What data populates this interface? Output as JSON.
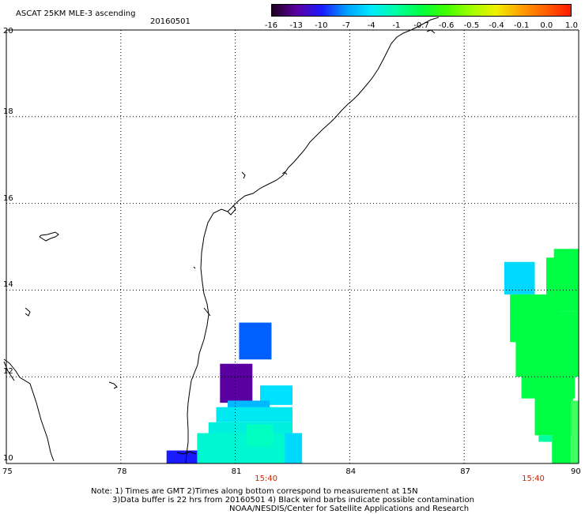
{
  "header": {
    "title": "ASCAT 25KM MLE-3 ascending",
    "date": "20160501"
  },
  "legend": {
    "colors": [
      "#200020",
      "#5a00a0",
      "#1a1aff",
      "#00a0ff",
      "#00eaff",
      "#00ffa0",
      "#00ff40",
      "#40ff00",
      "#a0ff00",
      "#f0f000",
      "#ffa000",
      "#ff6000",
      "#ff1a00"
    ],
    "ticks": [
      "-16",
      "-13",
      "-10",
      "-7",
      "-4",
      "-1",
      "-0.7",
      "-0.6",
      "-0.5",
      "-0.4",
      "-0.1",
      "0.0",
      "1.0"
    ]
  },
  "axes": {
    "lat_labels": [
      "20",
      "18",
      "16",
      "14",
      "12",
      "10"
    ],
    "lon_labels": [
      "75",
      "78",
      "81",
      "84",
      "87",
      "90"
    ]
  },
  "pass_times": [
    {
      "label": "15:40",
      "lon": 81.8
    },
    {
      "label": "15:40",
      "lon": 88.8
    }
  ],
  "notes": {
    "line1": "Note: 1) Times are GMT 2)Times along bottom correspond to measurement at 15N",
    "line2": "3)Data buffer is 22 hrs from 20160501 4) Black wind barbs indicate possible contamination",
    "line3": "NOAA/NESDIS/Center for Satellite Applications and Research"
  },
  "data_cells": [
    {
      "lon0": 79.2,
      "lat0": 10.0,
      "lon1": 80.05,
      "lat1": 10.3,
      "color": "#1a1aff"
    },
    {
      "lon0": 81.1,
      "lat0": 12.4,
      "lon1": 81.95,
      "lat1": 13.25,
      "color": "#0060ff"
    },
    {
      "lon0": 80.6,
      "lat0": 11.4,
      "lon1": 81.45,
      "lat1": 12.3,
      "color": "#5a00a0"
    },
    {
      "lon0": 81.65,
      "lat0": 11.35,
      "lon1": 82.5,
      "lat1": 11.8,
      "color": "#00e0ff"
    },
    {
      "lon0": 80.8,
      "lat0": 11.25,
      "lon1": 81.9,
      "lat1": 11.45,
      "color": "#00b8ff"
    },
    {
      "lon0": 80.5,
      "lat0": 10.95,
      "lon1": 82.5,
      "lat1": 11.3,
      "color": "#00e8f0"
    },
    {
      "lon0": 80.3,
      "lat0": 10.65,
      "lon1": 82.5,
      "lat1": 10.95,
      "color": "#00f0e0"
    },
    {
      "lon0": 80.0,
      "lat0": 10.0,
      "lon1": 82.75,
      "lat1": 10.7,
      "color": "#00f8d0"
    },
    {
      "lon0": 82.3,
      "lat0": 10.0,
      "lon1": 82.75,
      "lat1": 10.7,
      "color": "#00d8ff"
    },
    {
      "lon0": 81.3,
      "lat0": 10.4,
      "lon1": 82.0,
      "lat1": 10.9,
      "color": "#00ffc0"
    },
    {
      "lon0": 88.05,
      "lat0": 13.9,
      "lon1": 88.85,
      "lat1": 14.65,
      "color": "#00d8ff"
    },
    {
      "lon0": 89.35,
      "lat0": 13.5,
      "lon1": 90.0,
      "lat1": 14.95,
      "color": "#00ff44"
    },
    {
      "lon0": 89.15,
      "lat0": 13.2,
      "lon1": 89.5,
      "lat1": 14.75,
      "color": "#00ff44"
    },
    {
      "lon0": 88.2,
      "lat0": 12.8,
      "lon1": 89.2,
      "lat1": 13.9,
      "color": "#00ff44"
    },
    {
      "lon0": 88.35,
      "lat0": 12.0,
      "lon1": 90.0,
      "lat1": 13.5,
      "color": "#00ff44"
    },
    {
      "lon0": 88.5,
      "lat0": 11.5,
      "lon1": 89.9,
      "lat1": 12.1,
      "color": "#00ff44"
    },
    {
      "lon0": 88.85,
      "lat0": 10.65,
      "lon1": 89.85,
      "lat1": 11.6,
      "color": "#00ff44"
    },
    {
      "lon0": 89.3,
      "lat0": 10.0,
      "lon1": 89.8,
      "lat1": 10.8,
      "color": "#00ff44"
    },
    {
      "lon0": 89.8,
      "lat0": 10.0,
      "lon1": 90.0,
      "lat1": 11.45,
      "color": "#40ff60"
    },
    {
      "lon0": 88.95,
      "lat0": 10.5,
      "lon1": 89.3,
      "lat1": 10.65,
      "color": "#00ffa0"
    }
  ]
}
